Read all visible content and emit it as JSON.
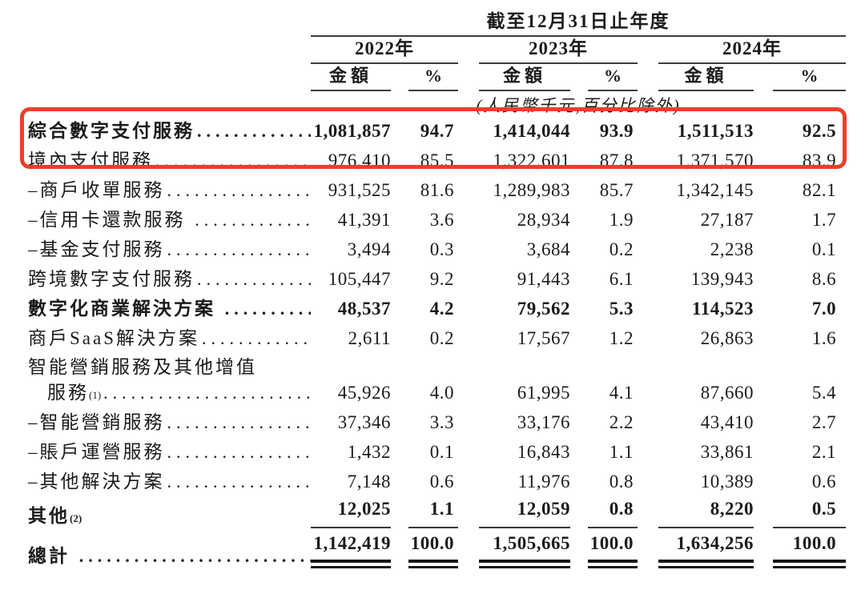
{
  "meta": {
    "accent_red": "#e8402a",
    "text_color": "#1b1b1b"
  },
  "header": {
    "period_title": "截至12月31日止年度",
    "years": [
      "2022年",
      "2023年",
      "2024年"
    ],
    "amount_label": "金額",
    "percent_label": "%",
    "unit_note": "(人民幣千元,百分比除外)"
  },
  "leader_dots": "......................................................................",
  "rows": [
    {
      "label": "綜合數字支付服務",
      "bold": true,
      "dots": true,
      "highlight": true,
      "values": [
        "1,081,857",
        "94.7",
        "1,414,044",
        "93.9",
        "1,511,513",
        "92.5"
      ]
    },
    {
      "label": "境內支付服務",
      "dots": true,
      "values": [
        "976,410",
        "85.5",
        "1,322,601",
        "87.8",
        "1,371,570",
        "83.9"
      ]
    },
    {
      "label": "–商戶收單服務",
      "dots": true,
      "values": [
        "931,525",
        "81.6",
        "1,289,983",
        "85.7",
        "1,342,145",
        "82.1"
      ]
    },
    {
      "label": "–信用卡還款服務 ",
      "dots": true,
      "values": [
        "41,391",
        "3.6",
        "28,934",
        "1.9",
        "27,187",
        "1.7"
      ]
    },
    {
      "label": "–基金支付服務",
      "dots": true,
      "values": [
        "3,494",
        "0.3",
        "3,684",
        "0.2",
        "2,238",
        "0.1"
      ]
    },
    {
      "label": "跨境數字支付服務",
      "dots": true,
      "values": [
        "105,447",
        "9.2",
        "91,443",
        "6.1",
        "139,943",
        "8.6"
      ]
    },
    {
      "label": "數字化商業解決方案 ",
      "bold": true,
      "dots": true,
      "values": [
        "48,537",
        "4.2",
        "79,562",
        "5.3",
        "114,523",
        "7.0"
      ]
    },
    {
      "label": "商戶SaaS解決方案",
      "dots": true,
      "values": [
        "2,611",
        "0.2",
        "17,567",
        "1.2",
        "26,863",
        "1.6"
      ]
    },
    {
      "label": "智能營銷服務及其他增值",
      "label2": "服務",
      "sup": "(1)",
      "two_line": true,
      "dots": true,
      "values": [
        "45,926",
        "4.0",
        "61,995",
        "4.1",
        "87,660",
        "5.4"
      ]
    },
    {
      "label": "–智能營銷服務",
      "dots": true,
      "values": [
        "37,346",
        "3.3",
        "33,176",
        "2.2",
        "43,410",
        "2.7"
      ]
    },
    {
      "label": "–賬戶運營服務",
      "dots": true,
      "values": [
        "1,432",
        "0.1",
        "16,843",
        "1.1",
        "33,861",
        "2.1"
      ]
    },
    {
      "label": "–其他解決方案",
      "dots": true,
      "values": [
        "7,148",
        "0.6",
        "11,976",
        "0.8",
        "10,389",
        "0.6"
      ]
    },
    {
      "label": "其他",
      "sup": "(2)",
      "bold": true,
      "dots": false,
      "rule_below": true,
      "values": [
        "12,025",
        "1.1",
        "12,059",
        "0.8",
        "8,220",
        "0.5"
      ]
    },
    {
      "label": "總計 ",
      "bold": true,
      "dots": true,
      "total": true,
      "values": [
        "1,142,419",
        "100.0",
        "1,505,665",
        "100.0",
        "1,634,256",
        "100.0"
      ]
    }
  ]
}
